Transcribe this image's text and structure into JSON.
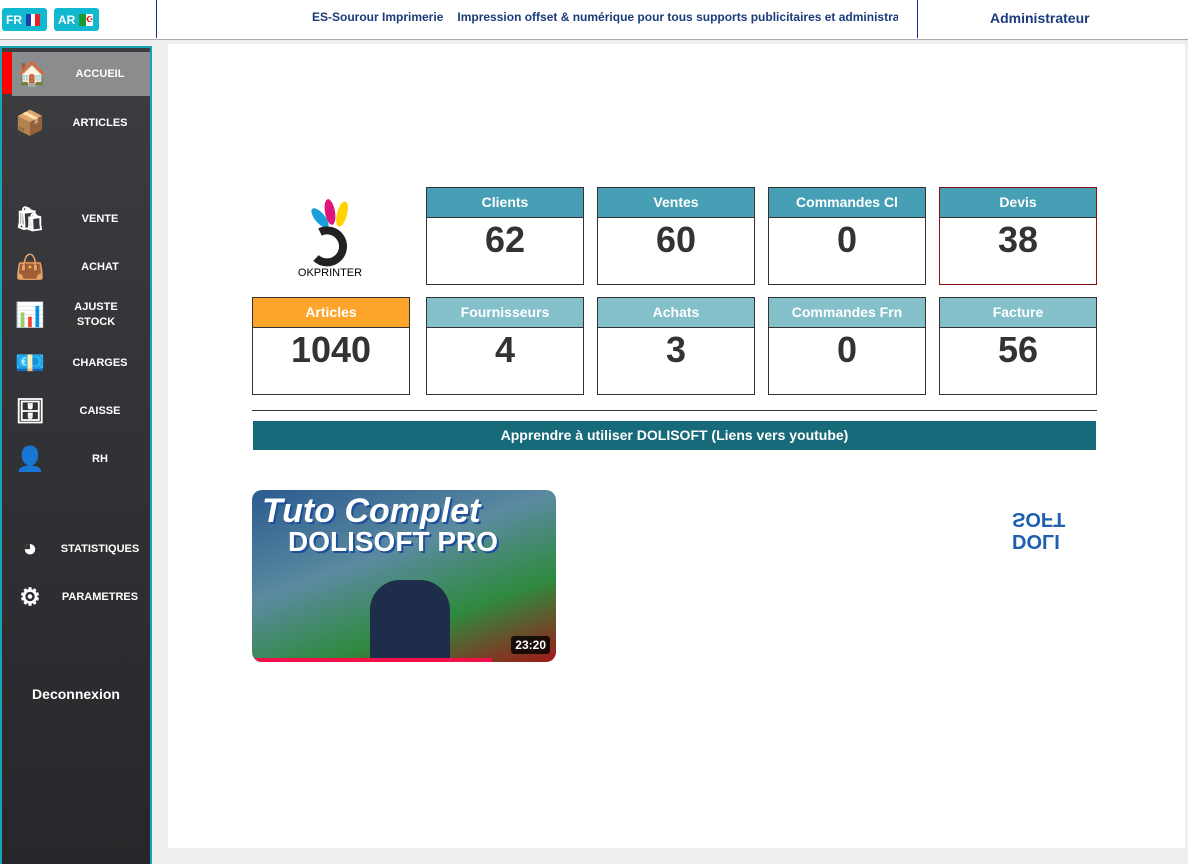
{
  "header": {
    "languages": [
      {
        "code": "FR",
        "flag_colors": [
          "#1a3fb0",
          "#ffffff",
          "#e8202a"
        ]
      },
      {
        "code": "AR",
        "flag_colors": [
          "#1a9a30",
          "#ffffff"
        ]
      }
    ],
    "company": "ES-Sourour Imprimerie",
    "tagline": "Impression offset & numérique pour tous supports publicitaires et administratifs",
    "user": "Administrateur"
  },
  "sidebar": {
    "items": [
      {
        "label": "ACCUEIL",
        "icon": "house-icon",
        "active": true
      },
      {
        "label": "ARTICLES",
        "icon": "crate-icon"
      },
      {
        "label": "VENTE",
        "icon": "shopping-bag-icon"
      },
      {
        "label": "ACHAT",
        "icon": "bag-icon"
      },
      {
        "label": "AJUSTE STOCK",
        "icon": "stock-boxes-icon"
      },
      {
        "label": "CHARGES",
        "icon": "money-icon"
      },
      {
        "label": "CAISSE",
        "icon": "safe-icon"
      },
      {
        "label": "RH",
        "icon": "person-icon"
      },
      {
        "label": "STATISTIQUES",
        "icon": "pie-chart-icon"
      },
      {
        "label": "PARAMETRES",
        "icon": "gear-icon"
      }
    ],
    "logout": "Deconnexion"
  },
  "logo": {
    "text": "OKPRINTER"
  },
  "stats": [
    {
      "label": "Clients",
      "value": "62",
      "color": "#479fb5"
    },
    {
      "label": "Ventes",
      "value": "60",
      "color": "#479fb5"
    },
    {
      "label": "Commandes Cl",
      "value": "0",
      "color": "#479fb5"
    },
    {
      "label": "Devis",
      "value": "38",
      "color": "#479fb5"
    },
    {
      "label": "Articles",
      "value": "1040",
      "color": "#fda52b"
    },
    {
      "label": "Fournisseurs",
      "value": "4",
      "color": "#84c0ca"
    },
    {
      "label": "Achats",
      "value": "3",
      "color": "#84c0ca"
    },
    {
      "label": "Commandes Frn",
      "value": "0",
      "color": "#84c0ca"
    },
    {
      "label": "Facture",
      "value": "56",
      "color": "#84c0ca"
    }
  ],
  "tutorial": {
    "banner": "Apprendre à utiliser DOLISOFT (Liens vers youtube)",
    "video": {
      "title_line1": "Tuto Complet",
      "title_line2": "DOLISOFT PRO",
      "duration": "23:20",
      "watched_percent": 79
    },
    "brand_logo": "DOLI SOFT"
  }
}
